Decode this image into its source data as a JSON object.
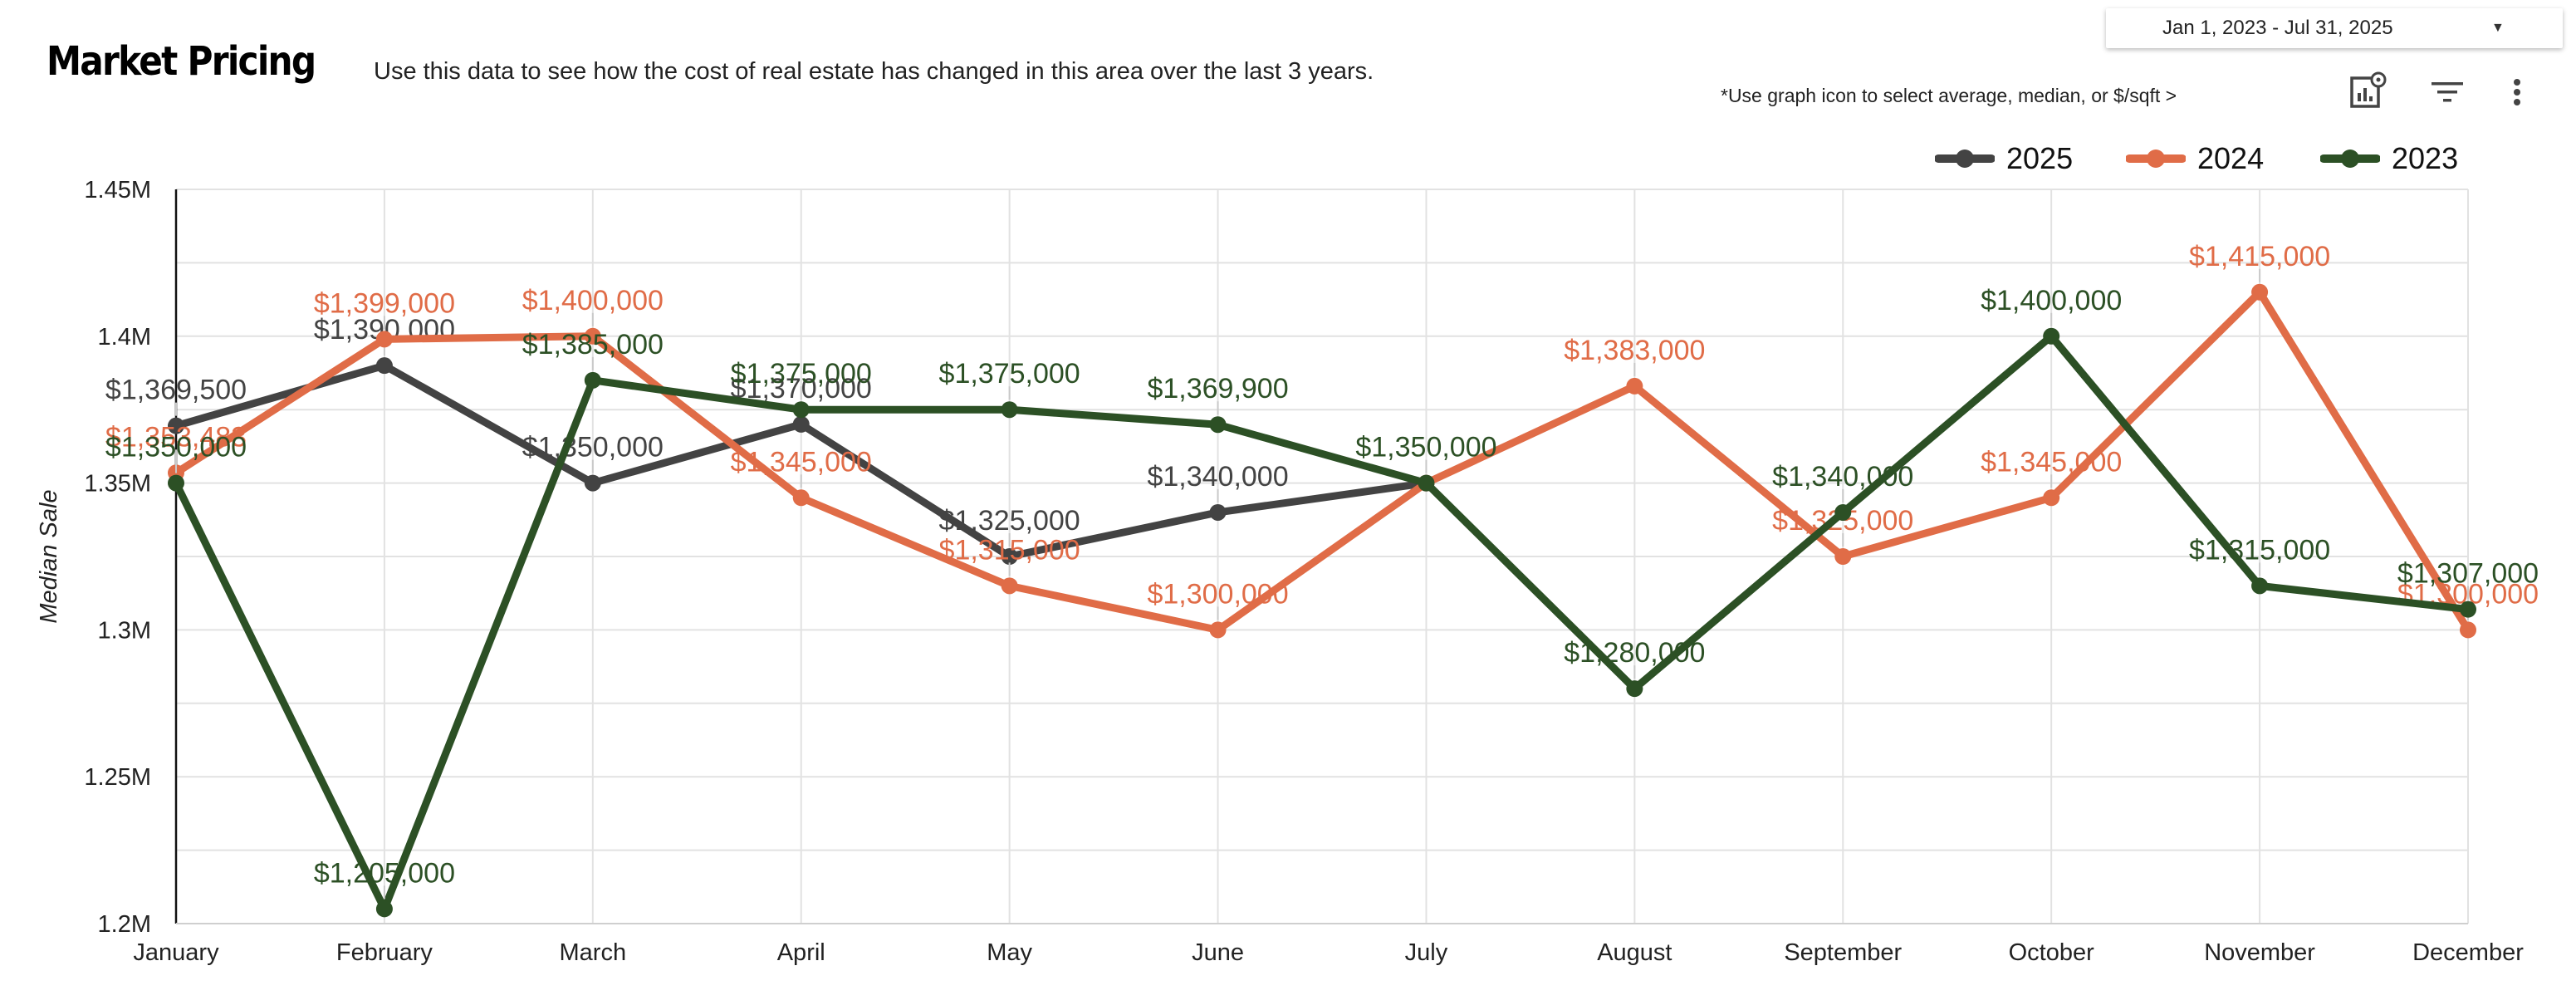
{
  "header": {
    "title": "Market Pricing",
    "subtitle": "Use this data to see how the cost of real estate has changed in this area over the last 3 years.",
    "date_range": "Jan 1, 2023 - Jul 31, 2025",
    "hint": "*Use graph icon to  select average, median, or $/sqft >"
  },
  "toolbar": {
    "chart_options_icon": "chart-settings-icon",
    "filter_icon": "filter-icon",
    "more_icon": "more-vert-icon"
  },
  "chart_data": {
    "type": "line",
    "title": "",
    "xlabel": "",
    "ylabel": "Median Sale",
    "ylim": [
      1200000,
      1450000
    ],
    "yticks": [
      1200000,
      1250000,
      1300000,
      1350000,
      1400000,
      1450000
    ],
    "ytick_labels": [
      "1.2M",
      "1.25M",
      "1.3M",
      "1.35M",
      "1.4M",
      "1.45M"
    ],
    "grid": true,
    "legend_position": "top-right",
    "categories": [
      "January",
      "February",
      "March",
      "April",
      "May",
      "June",
      "July",
      "August",
      "September",
      "October",
      "November",
      "December"
    ],
    "series": [
      {
        "name": "2025",
        "color": "#434343",
        "values": [
          1369500,
          1390000,
          1350000,
          1370000,
          1325000,
          1340000,
          1350000,
          null,
          null,
          null,
          null,
          null
        ],
        "labels": [
          "$1,369,500",
          "$1,390,000",
          "$1,350,000",
          "$1,370,000",
          "$1,325,000",
          "$1,340,000",
          "",
          "",
          "",
          "",
          "",
          ""
        ]
      },
      {
        "name": "2024",
        "color": "#e06c47",
        "values": [
          1353483,
          1399000,
          1400000,
          1345000,
          1315000,
          1300000,
          1350000,
          1383000,
          1325000,
          1345000,
          1415000,
          1300000
        ],
        "labels": [
          "$1,353,483",
          "$1,399,000",
          "$1,400,000",
          "$1,345,000",
          "$1,315,000",
          "$1,300,000",
          "",
          "$1,383,000",
          "$1,325,000",
          "$1,345,000",
          "$1,415,000",
          "$1,300,000"
        ]
      },
      {
        "name": "2023",
        "color": "#2c5025",
        "values": [
          1350000,
          1205000,
          1385000,
          1375000,
          1375000,
          1369900,
          1350000,
          1280000,
          1340000,
          1400000,
          1315000,
          1307000
        ],
        "labels": [
          "$1,350,000",
          "$1,205,000",
          "$1,385,000",
          "$1,375,000",
          "$1,375,000",
          "$1,369,900",
          "$1,350,000",
          "$1,280,000",
          "$1,340,000",
          "$1,400,000",
          "$1,315,000",
          "$1,307,000"
        ]
      }
    ]
  }
}
